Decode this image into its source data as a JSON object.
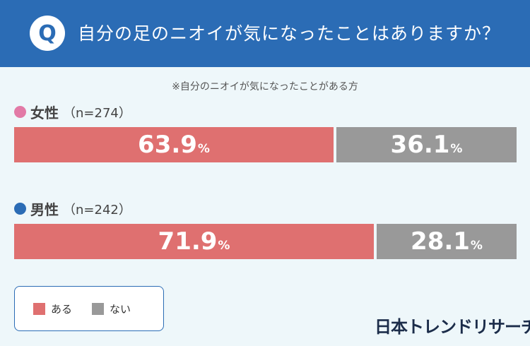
{
  "question": {
    "badge": "Q",
    "text": "自分の足のニオイが気になったことはありますか？"
  },
  "note": "※自分のニオイが気になったことがある方",
  "colors": {
    "header": "#2b6cb5",
    "aru": "#df7070",
    "nai": "#999999",
    "female_dot": "#e27aa6",
    "male_dot": "#2b6cb5"
  },
  "legend": {
    "aru": "ある",
    "nai": "ない"
  },
  "brand": "日本トレンドリサーチ",
  "chart_data": {
    "type": "bar",
    "orientation": "horizontal-stacked-100",
    "categories": [
      "女性",
      "男性"
    ],
    "n_labels": [
      "（n=274）",
      "（n=242）"
    ],
    "series": [
      {
        "name": "ある",
        "values": [
          63.9,
          71.9
        ]
      },
      {
        "name": "ない",
        "values": [
          36.1,
          28.1
        ]
      }
    ],
    "value_labels": [
      [
        "63.9",
        "36.1"
      ],
      [
        "71.9",
        "28.1"
      ]
    ],
    "unit": "%",
    "xlim": [
      0,
      100
    ],
    "legend_position": "bottom-left"
  }
}
